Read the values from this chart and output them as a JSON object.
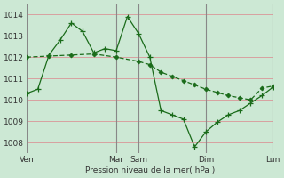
{
  "bg_color": "#cce8d4",
  "grid_color": "#d8a0a0",
  "line_color": "#1a6b1a",
  "ylabel": "Pression niveau de la mer( hPa )",
  "ylim": [
    1007.5,
    1014.5
  ],
  "yticks": [
    1008,
    1009,
    1010,
    1011,
    1012,
    1013,
    1014
  ],
  "xtick_labels": [
    "Ven",
    "",
    "",
    "",
    "Mar",
    "Sam",
    "",
    "",
    "Dim",
    "",
    "",
    "Lun"
  ],
  "xtick_positions": [
    0,
    1,
    2,
    3,
    4,
    5,
    6,
    7,
    8,
    9,
    10,
    11
  ],
  "vlines": [
    0,
    4,
    5,
    8,
    11
  ],
  "series1_x": [
    0,
    0.5,
    1.0,
    1.5,
    2.0,
    2.5,
    3.0,
    3.5,
    4.0,
    4.5,
    5.0,
    5.5,
    6.0,
    6.5,
    7.0,
    7.5,
    8.0,
    8.5,
    9.0,
    9.5,
    10.0,
    10.5,
    11.0
  ],
  "series1_y": [
    1010.3,
    1010.5,
    1012.1,
    1012.8,
    1013.6,
    1013.2,
    1012.2,
    1012.4,
    1012.3,
    1013.9,
    1013.1,
    1012.0,
    1009.5,
    1009.3,
    1009.1,
    1007.8,
    1008.5,
    1008.95,
    1009.3,
    1009.5,
    1009.85,
    1010.2,
    1010.6
  ],
  "series2_x": [
    0,
    1,
    2,
    3,
    4,
    5,
    5.5,
    6,
    6.5,
    7,
    7.5,
    8,
    8.5,
    9,
    9.5,
    10,
    10.5,
    11
  ],
  "series2_y": [
    1012.0,
    1012.05,
    1012.1,
    1012.15,
    1012.0,
    1011.8,
    1011.65,
    1011.3,
    1011.1,
    1010.9,
    1010.7,
    1010.5,
    1010.35,
    1010.2,
    1010.1,
    1010.0,
    1010.55,
    1010.65
  ]
}
